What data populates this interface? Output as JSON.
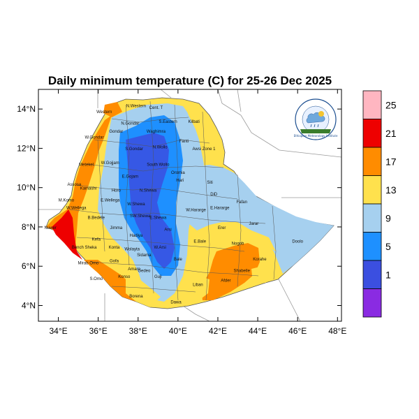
{
  "title": "Daily minimum temperature (C) for 25-26 Dec 2025",
  "map": {
    "x_ticks": [
      "34°E",
      "36°E",
      "38°E",
      "40°E",
      "42°E",
      "44°E",
      "46°E",
      "48°E"
    ],
    "y_ticks": [
      "14°N",
      "12°N",
      "10°N",
      "8°N",
      "6°N",
      "4°N"
    ],
    "lon_range": [
      33,
      48.2
    ],
    "lat_range": [
      3.2,
      15
    ],
    "zone_labels": [
      {
        "name": "N.Western",
        "lon": 37.9,
        "lat": 14.1
      },
      {
        "name": "Cent. T",
        "lon": 38.9,
        "lat": 14.0
      },
      {
        "name": "Western",
        "lon": 36.3,
        "lat": 13.8
      },
      {
        "name": "N.Gondar",
        "lon": 37.6,
        "lat": 13.2
      },
      {
        "name": "S.Eastern",
        "lon": 39.5,
        "lat": 13.3
      },
      {
        "name": "Kilbati",
        "lon": 40.8,
        "lat": 13.3
      },
      {
        "name": "Gondar",
        "lon": 36.9,
        "lat": 12.8
      },
      {
        "name": "Waghimra",
        "lon": 38.9,
        "lat": 12.8
      },
      {
        "name": "W.Gondar",
        "lon": 35.8,
        "lat": 12.5
      },
      {
        "name": "Fanti",
        "lon": 40.3,
        "lat": 12.3
      },
      {
        "name": "S.Gondar",
        "lon": 37.8,
        "lat": 11.9
      },
      {
        "name": "N.Wollo",
        "lon": 39.1,
        "lat": 12.0
      },
      {
        "name": "Awsi Zone 1",
        "lon": 41.3,
        "lat": 11.9
      },
      {
        "name": "Metekel",
        "lon": 35.4,
        "lat": 11.1
      },
      {
        "name": "W.Gojjam",
        "lon": 36.6,
        "lat": 11.2
      },
      {
        "name": "South Wollo",
        "lon": 39.0,
        "lat": 11.1
      },
      {
        "name": "E.Gojam",
        "lon": 37.6,
        "lat": 10.5
      },
      {
        "name": "Oromia",
        "lon": 40.0,
        "lat": 10.7
      },
      {
        "name": "Assosa",
        "lon": 34.8,
        "lat": 10.1
      },
      {
        "name": "Kamashi",
        "lon": 35.5,
        "lat": 9.9
      },
      {
        "name": "Hari",
        "lon": 40.1,
        "lat": 10.3
      },
      {
        "name": "Siti",
        "lon": 41.6,
        "lat": 10.2
      },
      {
        "name": "Horo",
        "lon": 36.9,
        "lat": 9.8
      },
      {
        "name": "N.Shewa",
        "lon": 38.5,
        "lat": 9.8
      },
      {
        "name": "DiD",
        "lon": 41.8,
        "lat": 9.6
      },
      {
        "name": "M.Komo",
        "lon": 34.4,
        "lat": 9.3
      },
      {
        "name": "E.Wellega",
        "lon": 36.6,
        "lat": 9.3
      },
      {
        "name": "Fafan",
        "lon": 43.2,
        "lat": 9.2
      },
      {
        "name": "W.Wellega",
        "lon": 34.9,
        "lat": 8.9
      },
      {
        "name": "W.Shewa",
        "lon": 37.9,
        "lat": 9.1
      },
      {
        "name": "W.Hararge",
        "lon": 40.9,
        "lat": 8.8
      },
      {
        "name": "E.Hararge",
        "lon": 42.1,
        "lat": 8.9
      },
      {
        "name": "B.Bedele",
        "lon": 35.9,
        "lat": 8.4
      },
      {
        "name": "SW.Shewa",
        "lon": 38.1,
        "lat": 8.5
      },
      {
        "name": "E.Shewa",
        "lon": 39.0,
        "lat": 8.4
      },
      {
        "name": "Jimma",
        "lon": 36.9,
        "lat": 7.9
      },
      {
        "name": "Arsi",
        "lon": 39.5,
        "lat": 7.8
      },
      {
        "name": "Erer",
        "lon": 42.2,
        "lat": 7.9
      },
      {
        "name": "Jarar",
        "lon": 43.8,
        "lat": 8.1
      },
      {
        "name": "Nuwer",
        "lon": 33.6,
        "lat": 7.9
      },
      {
        "name": "Kefa",
        "lon": 35.9,
        "lat": 7.3
      },
      {
        "name": "Hadiya",
        "lon": 37.9,
        "lat": 7.5
      },
      {
        "name": "Bench Sheka",
        "lon": 35.3,
        "lat": 6.9
      },
      {
        "name": "E.Bale",
        "lon": 41.1,
        "lat": 7.2
      },
      {
        "name": "Nogob",
        "lon": 43.0,
        "lat": 7.1
      },
      {
        "name": "Doolo",
        "lon": 46.0,
        "lat": 7.2
      },
      {
        "name": "Konta",
        "lon": 36.8,
        "lat": 6.9
      },
      {
        "name": "Wolayta",
        "lon": 37.7,
        "lat": 6.8
      },
      {
        "name": "W.Arsi",
        "lon": 39.1,
        "lat": 6.9
      },
      {
        "name": "Sidama",
        "lon": 38.3,
        "lat": 6.5
      },
      {
        "name": "Bale",
        "lon": 40.0,
        "lat": 6.3
      },
      {
        "name": "Korahe",
        "lon": 44.1,
        "lat": 6.3
      },
      {
        "name": "Mirab Omo",
        "lon": 35.5,
        "lat": 6.1
      },
      {
        "name": "Gofa",
        "lon": 36.8,
        "lat": 6.2
      },
      {
        "name": "Amaro",
        "lon": 37.8,
        "lat": 5.8
      },
      {
        "name": "Shabelle",
        "lon": 43.2,
        "lat": 5.7
      },
      {
        "name": "Gedeo",
        "lon": 38.3,
        "lat": 5.7
      },
      {
        "name": "Guji",
        "lon": 39.0,
        "lat": 5.4
      },
      {
        "name": "S.Omo",
        "lon": 35.9,
        "lat": 5.3
      },
      {
        "name": "Konso",
        "lon": 37.3,
        "lat": 5.4
      },
      {
        "name": "Afder",
        "lon": 42.4,
        "lat": 5.2
      },
      {
        "name": "Liban",
        "lon": 41.0,
        "lat": 5.0
      },
      {
        "name": "Borena",
        "lon": 37.9,
        "lat": 4.4
      },
      {
        "name": "Dawa",
        "lon": 39.9,
        "lat": 4.1
      }
    ]
  },
  "colorbar": {
    "labels": [
      "25",
      "21",
      "17",
      "13",
      "9",
      "5",
      "1"
    ],
    "colors": [
      "#ffb6c1",
      "#ee0000",
      "#ff8c00",
      "#ffe14d",
      "#a6d0ef",
      "#1e90ff",
      "#3b4fe0",
      "#8a2be2"
    ]
  },
  "logo": {
    "caption": "Ethiopian Meteorology Institute"
  }
}
